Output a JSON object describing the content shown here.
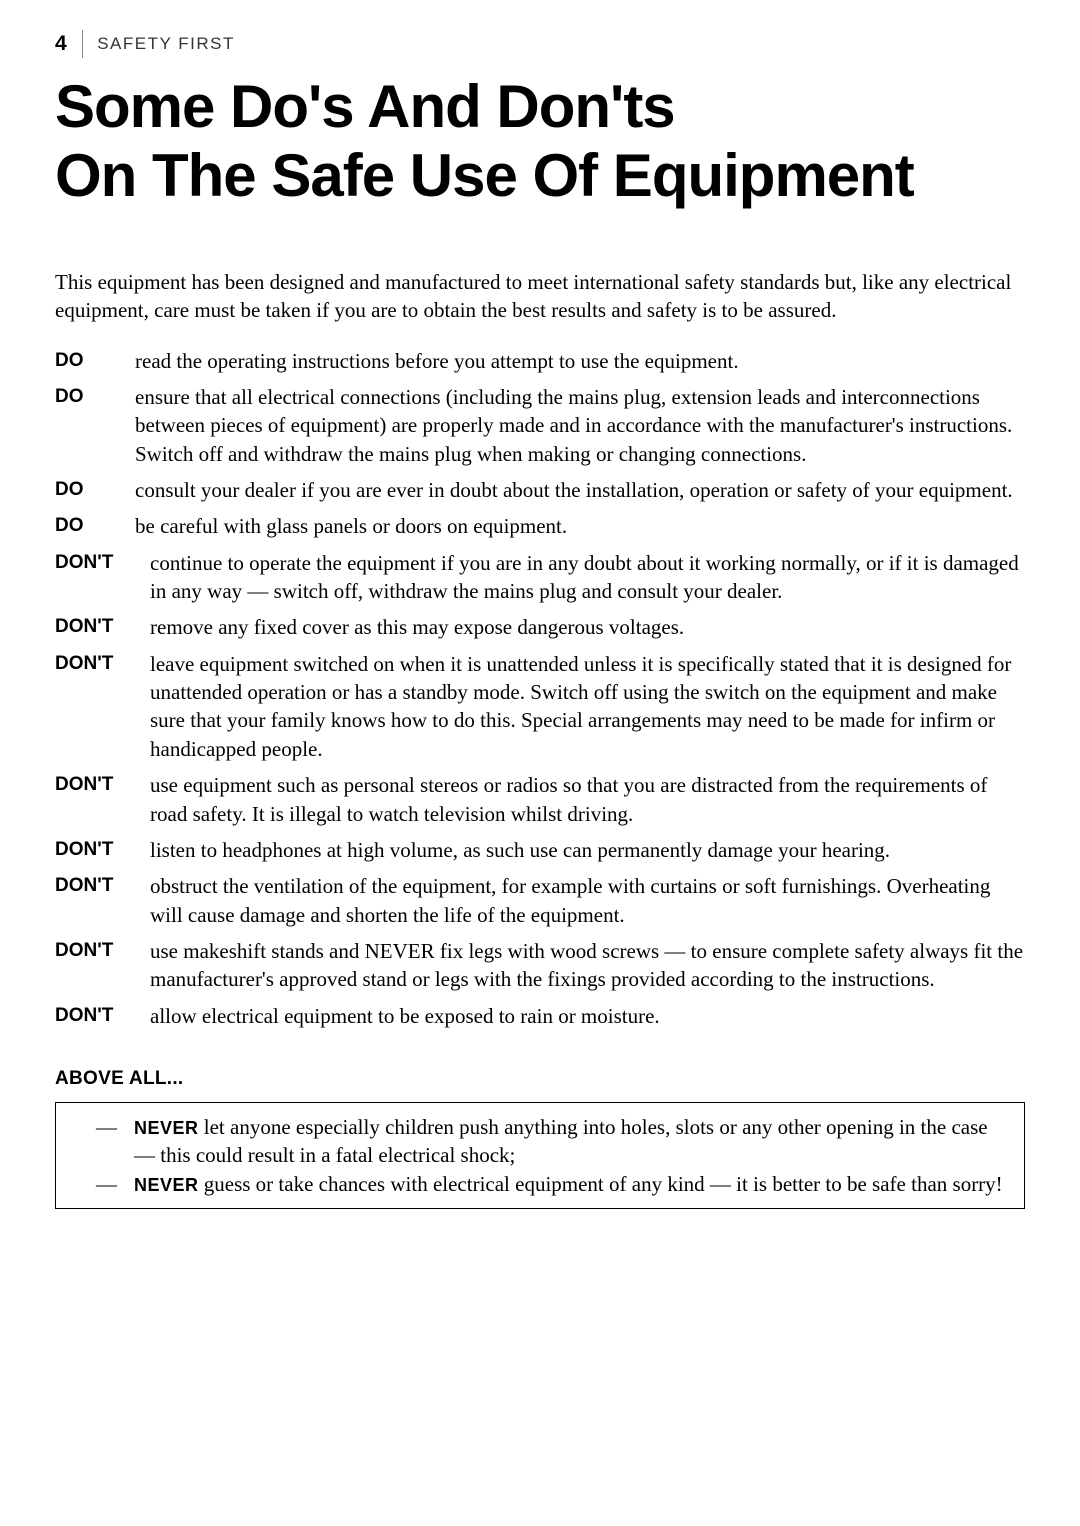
{
  "header": {
    "page_number": "4",
    "section": "SAFETY FIRST"
  },
  "title": "Some Do's And Don'ts\nOn The Safe Use Of Equipment",
  "intro": "This equipment has been designed and manufactured to meet international safety standards but, like any electrical equipment, care must be taken if you are to obtain the best results and safety is to be assured.",
  "items": [
    {
      "label": "DO",
      "text": "read the operating instructions before you attempt to use the equipment."
    },
    {
      "label": "DO",
      "text": "ensure that all electrical connections (including the mains plug, extension leads and interconnections between pieces of equipment) are properly made and in accordance with the manufacturer's instructions. Switch off and withdraw the mains plug when making or changing connections."
    },
    {
      "label": "DO",
      "text": "consult your dealer if you are ever in doubt about the installation, operation or safety of your equipment."
    },
    {
      "label": "DO",
      "text": "be careful with glass panels or doors on equipment."
    },
    {
      "label": "DON'T",
      "text": "continue to operate the equipment if you are in any doubt about it working normally, or if it is damaged in any way — switch off, withdraw the mains plug and consult your dealer."
    },
    {
      "label": "DON'T",
      "text": "remove any fixed cover as this may expose dangerous voltages."
    },
    {
      "label": "DON'T",
      "text": "leave equipment switched on when it is unattended unless it is specifically stated that it is designed for unattended operation or has a standby mode. Switch off using the switch on the equipment and make sure that your family knows how to do this. Special arrangements may need to be made for infirm or handicapped people."
    },
    {
      "label": "DON'T",
      "text": "use equipment such as personal stereos or radios so that you are distracted from the requirements of road safety. It is illegal to watch television whilst driving."
    },
    {
      "label": "DON'T",
      "text": "listen to headphones at high volume, as such use can permanently damage your hearing."
    },
    {
      "label": "DON'T",
      "text": "obstruct the ventilation of the equipment, for example with curtains or soft furnishings. Overheating will cause damage and shorten the life of the equipment."
    },
    {
      "label": "DON'T",
      "text": "use makeshift stands and NEVER fix legs with wood screws — to ensure complete safety always fit the manufacturer's approved stand or legs with the fixings provided according to the instructions."
    },
    {
      "label": "DON'T",
      "text": "allow electrical equipment to be exposed to rain or moisture."
    }
  ],
  "above_all": {
    "heading": "ABOVE ALL...",
    "never_label": "NEVER",
    "items": [
      "let anyone especially children push anything into holes, slots or any other opening in the case — this could result in a fatal electrical shock;",
      "guess or take chances with electrical equipment of any kind — it is better to be safe than sorry!"
    ]
  }
}
